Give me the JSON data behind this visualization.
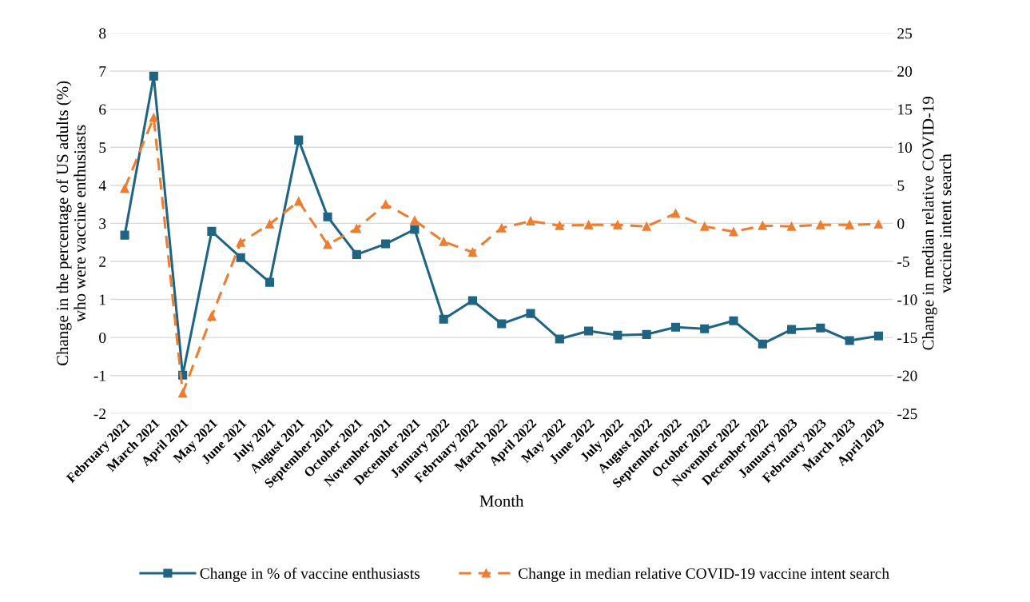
{
  "chart_data": {
    "type": "line",
    "xlabel": "Month",
    "ylabel": "Change in the percentage of US adults (%)\nwho were vaccine enthusiasts",
    "y2label": "Change in median relative COVID-19\nvaccine intent search",
    "categories": [
      "February 2021",
      "March 2021",
      "April 2021",
      "May 2021",
      "June 2021",
      "July 2021",
      "August 2021",
      "September 2021",
      "October 2021",
      "November 2021",
      "December 2021",
      "January 2022",
      "February 2022",
      "March 2022",
      "April 2022",
      "May 2022",
      "June 2022",
      "July 2022",
      "August 2022",
      "September 2022",
      "October 2022",
      "November 2022",
      "December 2022",
      "January 2023",
      "February 2023",
      "March 2023",
      "April 2023"
    ],
    "series": [
      {
        "name": "Change in % of vaccine enthusiasts",
        "color": "#1f6482",
        "marker": "square",
        "line_style": "solid",
        "values": [
          2.69,
          6.87,
          -0.99,
          2.79,
          2.1,
          1.45,
          5.19,
          3.17,
          2.18,
          2.46,
          2.84,
          0.48,
          0.97,
          0.36,
          0.63,
          -0.04,
          0.17,
          0.06,
          0.08,
          0.27,
          0.23,
          0.44,
          -0.17,
          0.21,
          0.25,
          -0.08,
          0.04
        ]
      },
      {
        "name": "Change in median relative COVID-19 vaccine intent search",
        "color": "#ed7d31",
        "marker": "triangle",
        "line_style": "dashed",
        "axis": "y2",
        "values": [
          4.6,
          13.9,
          -22.3,
          -12.2,
          -2.5,
          -0.1,
          2.9,
          -2.8,
          -0.7,
          2.5,
          0.4,
          -2.4,
          -3.8,
          -0.6,
          0.3,
          -0.3,
          -0.2,
          -0.2,
          -0.4,
          1.3,
          -0.4,
          -1.1,
          -0.3,
          -0.4,
          -0.2,
          -0.2,
          -0.1
        ]
      }
    ],
    "ylim": [
      -2,
      8
    ],
    "yticks": [
      -2,
      -1,
      0,
      1,
      2,
      3,
      4,
      5,
      6,
      7,
      8
    ],
    "y2lim": [
      -25,
      25
    ],
    "y2ticks": [
      -25,
      -20,
      -15,
      -10,
      -5,
      0,
      5,
      10,
      15,
      20,
      25
    ],
    "grid": "y",
    "legend": "bottom"
  }
}
